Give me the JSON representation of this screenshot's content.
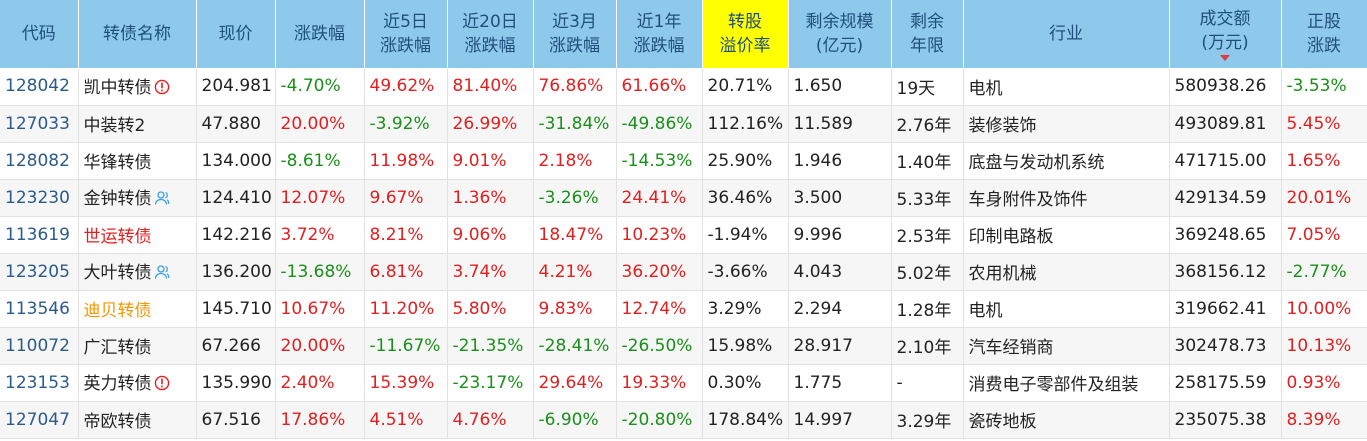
{
  "columns": [
    "代码",
    "转债名称",
    "现价",
    "涨跌幅",
    "近5日|涨跌幅",
    "近20日|涨跌幅",
    "近3月|涨跌幅",
    "近1年|涨跌幅",
    "转股|溢价率",
    "剩余规模|(亿元)",
    "剩余|年限",
    "行业",
    "成交额|(万元)",
    "正股|涨跌"
  ],
  "colors": {
    "up": "#e02020",
    "down": "#1a8f1a",
    "header_bg": "#8ec9ec",
    "highlight": "#ffff00"
  },
  "rows": [
    {
      "code": "128042",
      "name": "凯中转债",
      "name_color": "",
      "tag": "alert-icon",
      "price": "204.981",
      "chg": "-4.70%",
      "d5": "49.62%",
      "d20": "81.40%",
      "m3": "76.86%",
      "y1": "61.66%",
      "premium": "20.71%",
      "scale": "1.650",
      "years": "19天",
      "industry": "电机",
      "volume": "580938.26",
      "stock": "-3.53%"
    },
    {
      "code": "127033",
      "name": "中装转2",
      "name_color": "",
      "tag": "",
      "price": "47.880",
      "chg": "20.00%",
      "d5": "-3.92%",
      "d20": "26.99%",
      "m3": "-31.84%",
      "y1": "-49.86%",
      "premium": "112.16%",
      "scale": "11.589",
      "years": "2.76年",
      "industry": "装修装饰",
      "volume": "493089.81",
      "stock": "5.45%"
    },
    {
      "code": "128082",
      "name": "华锋转债",
      "name_color": "",
      "tag": "",
      "price": "134.000",
      "chg": "-8.61%",
      "d5": "11.98%",
      "d20": "9.01%",
      "m3": "2.18%",
      "y1": "-14.53%",
      "premium": "25.90%",
      "scale": "1.946",
      "years": "1.40年",
      "industry": "底盘与发动机系统",
      "volume": "471715.00",
      "stock": "1.65%"
    },
    {
      "code": "123230",
      "name": "金钟转债",
      "name_color": "",
      "tag": "person-icon",
      "price": "124.410",
      "chg": "12.07%",
      "d5": "9.67%",
      "d20": "1.36%",
      "m3": "-3.26%",
      "y1": "24.41%",
      "premium": "36.46%",
      "scale": "3.500",
      "years": "5.33年",
      "industry": "车身附件及饰件",
      "volume": "429134.59",
      "stock": "20.01%"
    },
    {
      "code": "113619",
      "name": "世运转债",
      "name_color": "red",
      "tag": "",
      "price": "142.216",
      "chg": "3.72%",
      "d5": "8.21%",
      "d20": "9.06%",
      "m3": "18.47%",
      "y1": "10.23%",
      "premium": "-1.94%",
      "scale": "9.996",
      "years": "2.53年",
      "industry": "印制电路板",
      "volume": "369248.65",
      "stock": "7.05%"
    },
    {
      "code": "123205",
      "name": "大叶转债",
      "name_color": "",
      "tag": "person-icon",
      "price": "136.200",
      "chg": "-13.68%",
      "d5": "6.81%",
      "d20": "3.74%",
      "m3": "4.21%",
      "y1": "36.20%",
      "premium": "-3.66%",
      "scale": "4.043",
      "years": "5.02年",
      "industry": "农用机械",
      "volume": "368156.12",
      "stock": "-2.77%"
    },
    {
      "code": "113546",
      "name": "迪贝转债",
      "name_color": "orange",
      "tag": "",
      "price": "145.710",
      "chg": "10.67%",
      "d5": "11.20%",
      "d20": "5.80%",
      "m3": "9.83%",
      "y1": "12.74%",
      "premium": "3.29%",
      "scale": "2.294",
      "years": "1.28年",
      "industry": "电机",
      "volume": "319662.41",
      "stock": "10.00%"
    },
    {
      "code": "110072",
      "name": "广汇转债",
      "name_color": "",
      "tag": "",
      "price": "67.266",
      "chg": "20.00%",
      "d5": "-11.67%",
      "d20": "-21.35%",
      "m3": "-28.41%",
      "y1": "-26.50%",
      "premium": "15.98%",
      "scale": "28.917",
      "years": "2.10年",
      "industry": "汽车经销商",
      "volume": "302478.73",
      "stock": "10.13%"
    },
    {
      "code": "123153",
      "name": "英力转债",
      "name_color": "",
      "tag": "alert-icon",
      "price": "135.990",
      "chg": "2.40%",
      "d5": "15.39%",
      "d20": "-23.17%",
      "m3": "29.64%",
      "y1": "19.33%",
      "premium": "0.30%",
      "scale": "1.775",
      "years": "-",
      "industry": "消费电子零部件及组装",
      "volume": "258175.59",
      "stock": "0.93%"
    },
    {
      "code": "127047",
      "name": "帝欧转债",
      "name_color": "",
      "tag": "",
      "price": "67.516",
      "chg": "17.86%",
      "d5": "4.51%",
      "d20": "4.76%",
      "m3": "-6.90%",
      "y1": "-20.80%",
      "premium": "178.84%",
      "scale": "14.997",
      "years": "3.29年",
      "industry": "瓷砖地板",
      "volume": "235075.38",
      "stock": "8.39%"
    }
  ]
}
